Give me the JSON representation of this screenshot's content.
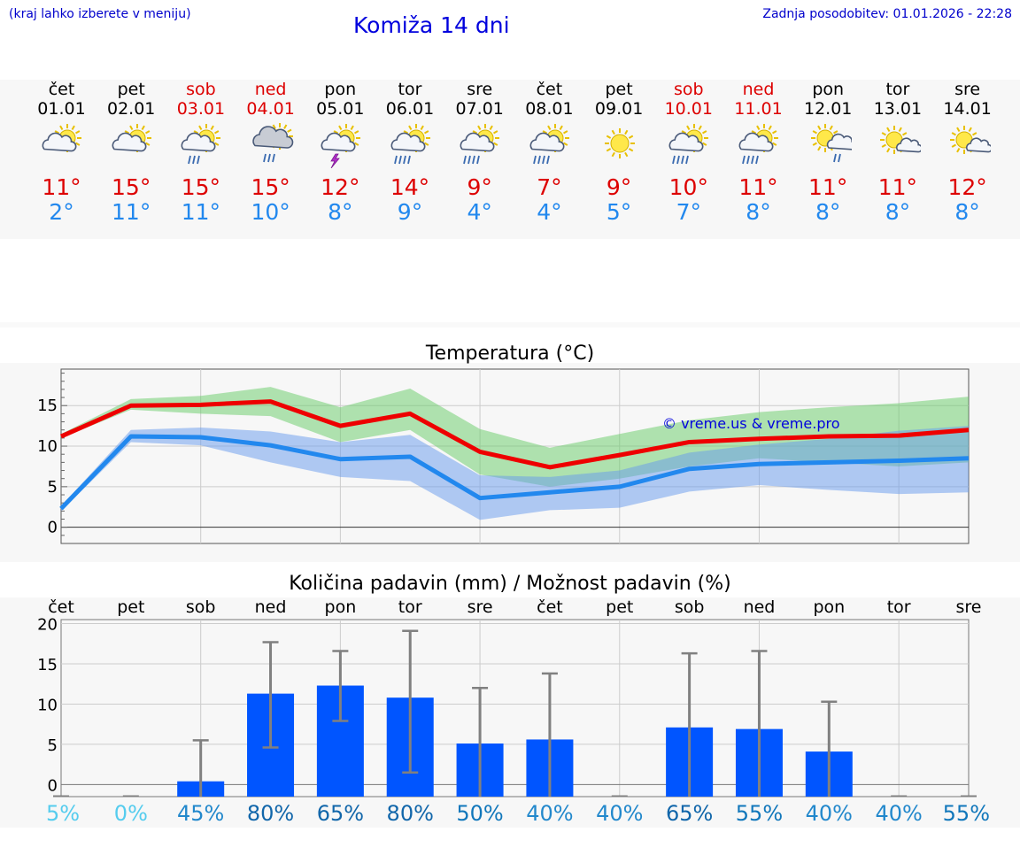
{
  "header": {
    "menu_hint": "(kraj lahko izberete v meniju)",
    "title": "Komiža 14 dni",
    "last_update": "Zadnja posodobitev: 01.01.2026 - 22:28"
  },
  "days": [
    {
      "name": "čet",
      "date": "01.01",
      "weekend": false,
      "icon": "sun-cloud-icon",
      "tmax": "11°",
      "tmin": "2°"
    },
    {
      "name": "pet",
      "date": "02.01",
      "weekend": false,
      "icon": "sun-cloud-icon",
      "tmax": "15°",
      "tmin": "11°"
    },
    {
      "name": "sob",
      "date": "03.01",
      "weekend": true,
      "icon": "sun-cloud-rain-icon",
      "tmax": "15°",
      "tmin": "11°"
    },
    {
      "name": "ned",
      "date": "04.01",
      "weekend": true,
      "icon": "cloud-rain-icon",
      "tmax": "15°",
      "tmin": "10°"
    },
    {
      "name": "pon",
      "date": "05.01",
      "weekend": false,
      "icon": "sun-cloud-thunder-icon",
      "tmax": "12°",
      "tmin": "8°"
    },
    {
      "name": "tor",
      "date": "06.01",
      "weekend": false,
      "icon": "sun-cloud-heavy-rain-icon",
      "tmax": "14°",
      "tmin": "9°"
    },
    {
      "name": "sre",
      "date": "07.01",
      "weekend": false,
      "icon": "sun-cloud-heavy-rain-icon",
      "tmax": "9°",
      "tmin": "4°"
    },
    {
      "name": "čet",
      "date": "08.01",
      "weekend": false,
      "icon": "sun-cloud-heavy-rain-icon",
      "tmax": "7°",
      "tmin": "4°"
    },
    {
      "name": "pet",
      "date": "09.01",
      "weekend": false,
      "icon": "sun-icon",
      "tmax": "9°",
      "tmin": "5°"
    },
    {
      "name": "sob",
      "date": "10.01",
      "weekend": true,
      "icon": "sun-cloud-heavy-rain-icon",
      "tmax": "10°",
      "tmin": "7°"
    },
    {
      "name": "ned",
      "date": "11.01",
      "weekend": true,
      "icon": "sun-cloud-heavy-rain-icon",
      "tmax": "11°",
      "tmin": "8°"
    },
    {
      "name": "pon",
      "date": "12.01",
      "weekend": false,
      "icon": "sun-small-cloud-rain-icon",
      "tmax": "11°",
      "tmin": "8°"
    },
    {
      "name": "tor",
      "date": "13.01",
      "weekend": false,
      "icon": "sun-small-cloud-icon",
      "tmax": "11°",
      "tmin": "8°"
    },
    {
      "name": "sre",
      "date": "14.01",
      "weekend": false,
      "icon": "sun-small-cloud-icon",
      "tmax": "12°",
      "tmin": "8°"
    }
  ],
  "chart_data": [
    {
      "type": "line",
      "title": "Temperatura (°C)",
      "watermark": "© vreme.us & vreme.pro",
      "ylim": [
        -2,
        19.5
      ],
      "yticks": [
        "0",
        "5",
        "10",
        "15"
      ],
      "ytick_values": [
        0,
        5,
        10,
        15
      ],
      "x": [
        0,
        1,
        2,
        3,
        4,
        5,
        6,
        7,
        8,
        9,
        10,
        11,
        12,
        13
      ],
      "series": [
        {
          "name": "max",
          "color": "#ee0000",
          "values": [
            11.2,
            15.0,
            15.1,
            15.5,
            12.5,
            14.0,
            9.3,
            7.4,
            8.9,
            10.5,
            10.9,
            11.2,
            11.3,
            12.0
          ]
        },
        {
          "name": "min",
          "color": "#2288ee",
          "values": [
            2.3,
            11.2,
            11.1,
            10.1,
            8.4,
            8.7,
            3.6,
            4.3,
            5.0,
            7.2,
            7.8,
            8.0,
            8.2,
            8.5
          ]
        }
      ],
      "bands": [
        {
          "name": "max-range",
          "color": "#66cc66",
          "low": [
            11.0,
            14.5,
            14.0,
            13.7,
            10.5,
            12.0,
            6.5,
            5.0,
            6.0,
            7.5,
            8.5,
            8.0,
            7.5,
            8.0
          ],
          "high": [
            11.5,
            15.8,
            16.2,
            17.3,
            14.8,
            17.1,
            12.1,
            9.8,
            11.5,
            13.2,
            14.2,
            14.8,
            15.3,
            16.1
          ]
        },
        {
          "name": "min-range",
          "color": "#6699ee",
          "low": [
            2.0,
            10.5,
            10.1,
            8.0,
            6.2,
            5.7,
            0.9,
            2.1,
            2.4,
            4.4,
            5.2,
            4.6,
            4.1,
            4.3
          ],
          "high": [
            2.6,
            12.0,
            12.3,
            11.8,
            10.5,
            11.4,
            6.4,
            6.2,
            7.0,
            9.2,
            10.2,
            10.9,
            11.9,
            12.5
          ]
        }
      ]
    },
    {
      "type": "bar",
      "title": "Količina padavin (mm) / Možnost padavin (%)",
      "categories": [
        "čet",
        "pet",
        "sob",
        "ned",
        "pon",
        "tor",
        "sre",
        "čet",
        "pet",
        "sob",
        "ned",
        "pon",
        "tor",
        "sre"
      ],
      "ylim": [
        -1.5,
        20.5
      ],
      "yticks": [
        "0",
        "5",
        "10",
        "15",
        "20"
      ],
      "ytick_values": [
        0,
        5,
        10,
        15,
        20
      ],
      "values": [
        0,
        0,
        0.4,
        11.3,
        12.3,
        10.8,
        5.1,
        5.6,
        0,
        7.1,
        6.9,
        4.1,
        0,
        0
      ],
      "err_low": [
        0,
        0,
        0,
        4.6,
        7.9,
        1.5,
        0,
        0,
        0,
        0,
        0,
        0,
        0,
        0
      ],
      "err_high": [
        0,
        0,
        5.5,
        17.7,
        16.6,
        19.1,
        12.0,
        13.8,
        0,
        16.3,
        16.6,
        10.3,
        0,
        0
      ],
      "probability": [
        "5%",
        "0%",
        "45%",
        "80%",
        "65%",
        "80%",
        "50%",
        "40%",
        "40%",
        "65%",
        "55%",
        "40%",
        "40%",
        "55%"
      ],
      "probability_colors": [
        "#55ccee",
        "#55ccee",
        "#2288cc",
        "#1166aa",
        "#1166aa",
        "#1166aa",
        "#1177bb",
        "#2288cc",
        "#2288cc",
        "#1166aa",
        "#1177bb",
        "#2288cc",
        "#2288cc",
        "#1177bb"
      ]
    }
  ]
}
